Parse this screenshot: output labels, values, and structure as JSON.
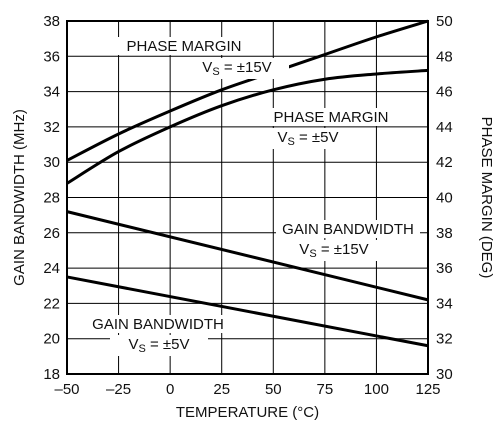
{
  "chart_data": {
    "type": "line",
    "xlabel": "TEMPERATURE (°C)",
    "ylabel_left": "GAIN BANDWIDTH (MHz)",
    "ylabel_right": "PHASE MARGIN (DEG)",
    "xlim": [
      -50,
      125
    ],
    "ylim_left": [
      18,
      38
    ],
    "ylim_right": [
      30,
      50
    ],
    "x_ticks": [
      -50,
      -25,
      0,
      25,
      50,
      75,
      100,
      125
    ],
    "y_ticks_left": [
      18,
      20,
      22,
      24,
      26,
      28,
      30,
      32,
      34,
      36,
      38
    ],
    "y_ticks_right": [
      30,
      32,
      34,
      36,
      38,
      40,
      42,
      44,
      46,
      48,
      50
    ],
    "x_tick_labels": [
      "–50",
      "–25",
      "0",
      "25",
      "50",
      "75",
      "100",
      "125"
    ],
    "grid": true,
    "series": [
      {
        "axis": "right",
        "x": [
          -50,
          -25,
          0,
          25,
          50,
          75,
          100,
          125
        ],
        "values": [
          42.1,
          43.6,
          44.9,
          46.1,
          47.1,
          48.1,
          49.1,
          50.0
        ],
        "label_lines": [
          "PHASE MARGIN",
          "V",
          "S",
          " = ±15V"
        ]
      },
      {
        "axis": "right",
        "x": [
          -50,
          -25,
          0,
          25,
          50,
          75,
          100,
          125
        ],
        "values": [
          40.8,
          42.6,
          44.0,
          45.2,
          46.1,
          46.7,
          47.0,
          47.2
        ],
        "label_lines": [
          "PHASE MARGIN",
          "V",
          "S",
          " = ±5V"
        ]
      },
      {
        "axis": "left",
        "x": [
          -50,
          125
        ],
        "values": [
          27.2,
          22.2
        ],
        "label_lines": [
          "GAIN BANDWIDTH",
          "V",
          "S",
          " = ±15V"
        ]
      },
      {
        "axis": "left",
        "x": [
          -50,
          125
        ],
        "values": [
          23.5,
          19.6
        ],
        "label_lines": [
          "GAIN BANDWIDTH",
          "V",
          "S",
          " = ±5V"
        ]
      }
    ]
  }
}
